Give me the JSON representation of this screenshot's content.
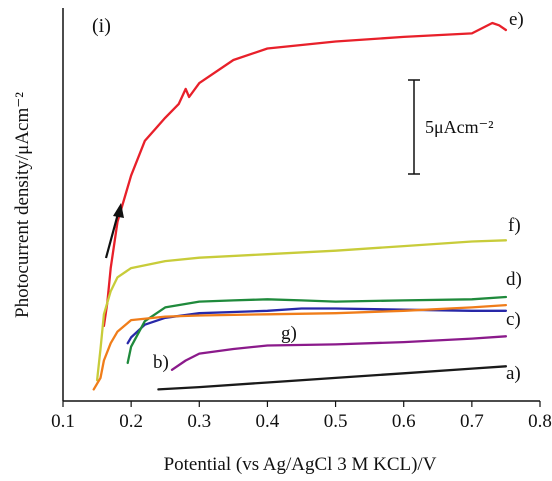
{
  "panel_label": "(i)",
  "scale_bar_label": "5μAcm⁻²",
  "chart_data": {
    "type": "line",
    "xlabel": "Potential (vs Ag/AgCl 3 M KCL)/V",
    "ylabel": "Photocurrent density/μAcm⁻²",
    "xlim": [
      0.1,
      0.8
    ],
    "xticks": [
      0.1,
      0.2,
      0.3,
      0.4,
      0.5,
      0.6,
      0.7,
      0.8
    ],
    "xtick_labels": [
      "0.1",
      "0.2",
      "0.3",
      "0.4",
      "0.5",
      "0.6",
      "0.7",
      "0.8"
    ],
    "y_tick_labels_shown": false,
    "scale_bar_value": 5,
    "scale_bar_unit": "μAcm⁻²",
    "arrow_annotation": "increasing photocurrent direction",
    "series": [
      {
        "name": "a)",
        "color": "#1a1a1a",
        "x": [
          0.24,
          0.3,
          0.4,
          0.5,
          0.6,
          0.7,
          0.75
        ],
        "y": [
          -0.5,
          -0.3,
          0.1,
          0.5,
          0.9,
          1.3,
          1.5
        ]
      },
      {
        "name": "b)",
        "color": "#8b1a8b",
        "x": [
          0.26,
          0.28,
          0.3,
          0.35,
          0.4,
          0.5,
          0.6,
          0.7,
          0.75
        ],
        "y": [
          1.2,
          2.0,
          2.6,
          3.0,
          3.3,
          3.4,
          3.6,
          3.9,
          4.1
        ]
      },
      {
        "name": "c)",
        "color": "#2828a8",
        "x": [
          0.195,
          0.2,
          0.22,
          0.25,
          0.3,
          0.35,
          0.4,
          0.45,
          0.5,
          0.6,
          0.7,
          0.75
        ],
        "y": [
          3.5,
          4.0,
          5.1,
          5.7,
          6.1,
          6.2,
          6.3,
          6.5,
          6.5,
          6.4,
          6.3,
          6.3
        ]
      },
      {
        "name": "d)",
        "color": "#1f8a3c",
        "x": [
          0.195,
          0.2,
          0.22,
          0.25,
          0.3,
          0.35,
          0.4,
          0.45,
          0.5,
          0.6,
          0.7,
          0.75
        ],
        "y": [
          1.8,
          3.2,
          5.4,
          6.6,
          7.1,
          7.2,
          7.3,
          7.2,
          7.1,
          7.2,
          7.3,
          7.5
        ]
      },
      {
        "name": "e)",
        "color": "#e8202a",
        "x": [
          0.16,
          0.165,
          0.17,
          0.18,
          0.2,
          0.22,
          0.25,
          0.27,
          0.28,
          0.285,
          0.3,
          0.35,
          0.4,
          0.45,
          0.5,
          0.6,
          0.7,
          0.73,
          0.74,
          0.75
        ],
        "y": [
          5.0,
          7.0,
          10.0,
          14.0,
          18.0,
          21.0,
          23.0,
          24.2,
          25.5,
          24.8,
          26.0,
          28.0,
          29.0,
          29.3,
          29.6,
          30.0,
          30.3,
          31.2,
          31.0,
          30.6
        ]
      },
      {
        "name": "f)",
        "color": "#c8cc3a",
        "x": [
          0.15,
          0.155,
          0.16,
          0.17,
          0.18,
          0.2,
          0.25,
          0.3,
          0.4,
          0.5,
          0.6,
          0.7,
          0.75
        ],
        "y": [
          0.3,
          3.0,
          6.0,
          8.0,
          9.2,
          10.0,
          10.6,
          10.9,
          11.2,
          11.5,
          11.9,
          12.3,
          12.4
        ]
      },
      {
        "name": "g)",
        "color": "#f07d1a",
        "x": [
          0.145,
          0.155,
          0.16,
          0.17,
          0.18,
          0.2,
          0.25,
          0.3,
          0.4,
          0.5,
          0.6,
          0.7,
          0.75
        ],
        "y": [
          -0.5,
          0.5,
          2.0,
          3.5,
          4.5,
          5.5,
          5.8,
          5.9,
          6.0,
          6.1,
          6.3,
          6.6,
          6.8
        ]
      }
    ]
  }
}
